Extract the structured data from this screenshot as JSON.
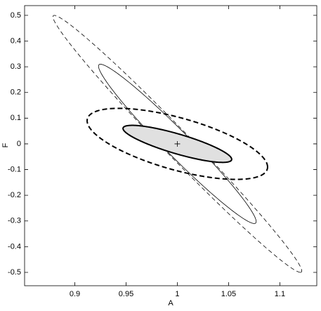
{
  "chart_data": {
    "type": "ellipse",
    "xlabel": "A",
    "ylabel": "F",
    "xlim": [
      0.851,
      1.136
    ],
    "ylim": [
      -0.552,
      0.538
    ],
    "xticks": [
      0.9,
      0.95,
      1,
      1.05,
      1.1
    ],
    "yticks": [
      -0.5,
      -0.4,
      -0.3,
      -0.2,
      -0.1,
      0,
      0.1,
      0.2,
      0.3,
      0.4,
      0.5
    ],
    "series": [
      {
        "center": [
          1,
          0
        ],
        "a": [
          0.12,
          -0.5
        ],
        "b": [
          0.018,
          0
        ],
        "color": "#000000",
        "dash": true,
        "width": 0.8,
        "fill": "none"
      },
      {
        "center": [
          1,
          0
        ],
        "a": [
          0.075,
          -0.31
        ],
        "b": [
          0.017,
          0
        ],
        "color": "#000000",
        "dash": false,
        "width": 0.8,
        "fill": "none"
      },
      {
        "center": [
          1,
          0
        ],
        "a": [
          0.088,
          -0.09
        ],
        "b": [
          0,
          0.105
        ],
        "color": "#000000",
        "dash": true,
        "width": 2,
        "fill": "none"
      },
      {
        "center": [
          1,
          0
        ],
        "a": [
          0.053,
          -0.06
        ],
        "b": [
          0,
          0.04
        ],
        "color": "#000000",
        "dash": false,
        "width": 2,
        "fill": "#e0e0e0"
      }
    ],
    "marker": [
      1,
      0
    ]
  }
}
